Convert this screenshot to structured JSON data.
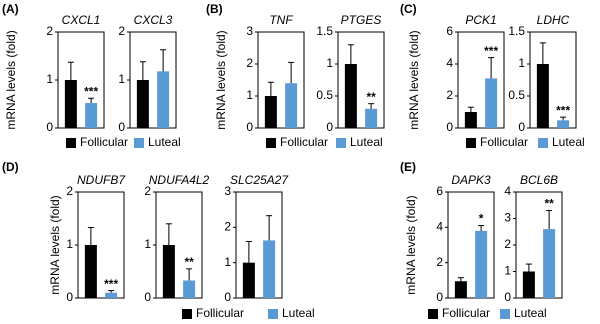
{
  "chart_data": [
    {
      "type": "bar",
      "title": "(A)",
      "ylabel": "mRNA levels (fold)",
      "series": [
        {
          "name": "Follicular",
          "color": "#000000"
        },
        {
          "name": "Luteal",
          "color": "#5b9bd5"
        }
      ],
      "subplots": [
        {
          "title": "CXCL1",
          "ylim": [
            0,
            2
          ],
          "yticks": [
            0,
            1,
            2
          ],
          "values": [
            1.0,
            0.52
          ],
          "errors": [
            0.37,
            0.1
          ],
          "significance": "***"
        },
        {
          "title": "CXCL3",
          "ylim": [
            0,
            2
          ],
          "yticks": [
            0,
            1,
            2
          ],
          "values": [
            1.0,
            1.18
          ],
          "errors": [
            0.38,
            0.45
          ]
        }
      ]
    },
    {
      "type": "bar",
      "title": "(B)",
      "ylabel": "mRNA levels (fold)",
      "series": [
        {
          "name": "Follicular",
          "color": "#000000"
        },
        {
          "name": "Luteal",
          "color": "#5b9bd5"
        }
      ],
      "subplots": [
        {
          "title": "TNF",
          "ylim": [
            0,
            3
          ],
          "yticks": [
            0,
            1,
            2,
            3
          ],
          "values": [
            1.0,
            1.4
          ],
          "errors": [
            0.43,
            0.65
          ]
        },
        {
          "title": "PTGES",
          "ylim": [
            0,
            1.5
          ],
          "yticks": [
            0,
            0.5,
            1,
            1.5
          ],
          "values": [
            1.0,
            0.3
          ],
          "errors": [
            0.3,
            0.08
          ],
          "significance": "**"
        }
      ]
    },
    {
      "type": "bar",
      "title": "(C)",
      "ylabel": "mRNA levels (fold)",
      "series": [
        {
          "name": "Follicular",
          "color": "#000000"
        },
        {
          "name": "Luteal",
          "color": "#5b9bd5"
        }
      ],
      "subplots": [
        {
          "title": "PCK1",
          "ylim": [
            0,
            6
          ],
          "yticks": [
            0,
            2,
            4,
            6
          ],
          "values": [
            1.0,
            3.1
          ],
          "errors": [
            0.3,
            1.3
          ],
          "significance": "***"
        },
        {
          "title": "LDHC",
          "ylim": [
            0,
            1.5
          ],
          "yticks": [
            0,
            0.5,
            1,
            1.5
          ],
          "values": [
            1.0,
            0.12
          ],
          "errors": [
            0.33,
            0.05
          ],
          "significance": "***"
        }
      ]
    },
    {
      "type": "bar",
      "title": "(D)",
      "ylabel": "mRNA levels (fold)",
      "series": [
        {
          "name": "Follicular",
          "color": "#000000"
        },
        {
          "name": "Luteal",
          "color": "#5b9bd5"
        }
      ],
      "subplots": [
        {
          "title": "NDUFB7",
          "ylim": [
            0,
            2
          ],
          "yticks": [
            0,
            1,
            2
          ],
          "values": [
            1.0,
            0.1
          ],
          "errors": [
            0.33,
            0.04
          ],
          "significance": "***"
        },
        {
          "title": "NDUFA4L2",
          "ylim": [
            0,
            2
          ],
          "yticks": [
            0,
            1,
            2
          ],
          "values": [
            1.0,
            0.33
          ],
          "errors": [
            0.4,
            0.22
          ],
          "significance": "**"
        },
        {
          "title": "SLC25A27",
          "ylim": [
            0,
            3
          ],
          "yticks": [
            0,
            1,
            2,
            3
          ],
          "values": [
            1.0,
            1.63
          ],
          "errors": [
            0.6,
            0.7
          ]
        }
      ]
    },
    {
      "type": "bar",
      "title": "(E)",
      "ylabel": "mRNA levels (fold)",
      "series": [
        {
          "name": "Follicular",
          "color": "#000000"
        },
        {
          "name": "Luteal",
          "color": "#5b9bd5"
        }
      ],
      "subplots": [
        {
          "title": "DAPK3",
          "ylim": [
            0,
            6
          ],
          "yticks": [
            0,
            2,
            4,
            6
          ],
          "values": [
            0.95,
            3.8
          ],
          "errors": [
            0.2,
            0.3
          ],
          "significance": "*"
        },
        {
          "title": "BCL6B",
          "ylim": [
            0,
            4
          ],
          "yticks": [
            0,
            1,
            2,
            3,
            4
          ],
          "values": [
            1.0,
            2.6
          ],
          "errors": [
            0.28,
            0.7
          ],
          "significance": "**"
        }
      ]
    }
  ]
}
